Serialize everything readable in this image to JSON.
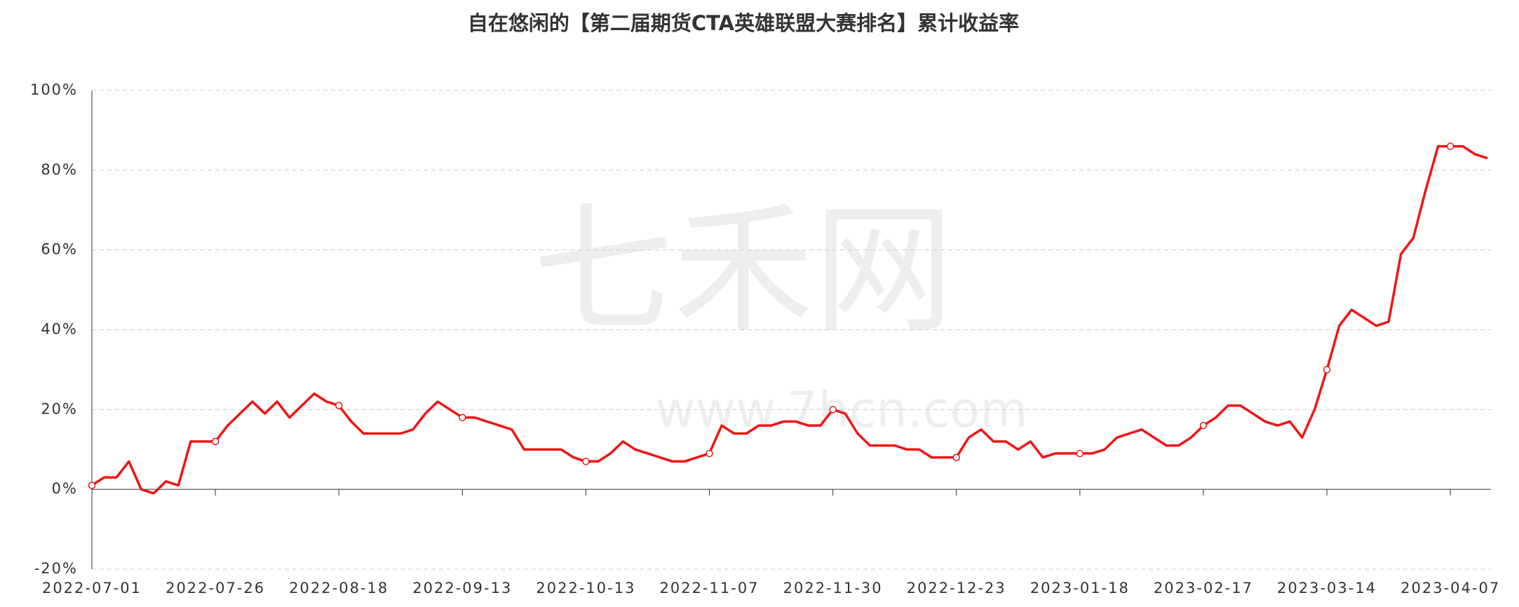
{
  "chart_data": {
    "type": "line",
    "title": "自在悠闲的【第二届期货CTA英雄联盟大赛排名】累计收益率",
    "watermark": [
      "七禾网",
      "www.7hcn.com"
    ],
    "categories": [
      "2022-07-01",
      null,
      null,
      null,
      null,
      null,
      null,
      null,
      null,
      null,
      "2022-07-26",
      null,
      null,
      null,
      null,
      null,
      null,
      null,
      null,
      null,
      "2022-08-18",
      null,
      null,
      null,
      null,
      null,
      null,
      null,
      null,
      null,
      "2022-09-13",
      null,
      null,
      null,
      null,
      null,
      null,
      null,
      null,
      null,
      "2022-10-13",
      null,
      null,
      null,
      null,
      null,
      null,
      null,
      null,
      null,
      "2022-11-07",
      null,
      null,
      null,
      null,
      null,
      null,
      null,
      null,
      null,
      "2022-11-30",
      null,
      null,
      null,
      null,
      null,
      null,
      null,
      null,
      null,
      "2022-12-23",
      null,
      null,
      null,
      null,
      null,
      null,
      null,
      null,
      null,
      "2023-01-18",
      null,
      null,
      null,
      null,
      null,
      null,
      null,
      null,
      null,
      "2023-02-17",
      null,
      null,
      null,
      null,
      null,
      null,
      null,
      null,
      null,
      "2023-03-14",
      null,
      null,
      null,
      null,
      null,
      null,
      null,
      null,
      null,
      "2023-04-07",
      null,
      null,
      null
    ],
    "series": [
      {
        "name": "累计收益率",
        "color": "#f01414",
        "values": [
          1,
          3,
          3,
          7,
          0,
          -1,
          2,
          1,
          12,
          12,
          12,
          16,
          19,
          22,
          19,
          22,
          18,
          21,
          24,
          22,
          21,
          17,
          14,
          14,
          14,
          14,
          15,
          19,
          22,
          20,
          18,
          18,
          17,
          16,
          15,
          10,
          10,
          10,
          10,
          8,
          7,
          7,
          9,
          12,
          10,
          9,
          8,
          7,
          7,
          8,
          9,
          16,
          14,
          14,
          16,
          16,
          17,
          17,
          16,
          16,
          20,
          19,
          14,
          11,
          11,
          11,
          10,
          10,
          8,
          8,
          8,
          13,
          15,
          12,
          12,
          10,
          12,
          8,
          9,
          9,
          9,
          9,
          10,
          13,
          14,
          15,
          13,
          11,
          11,
          13,
          16,
          18,
          21,
          21,
          19,
          17,
          16,
          17,
          13,
          20,
          30,
          41,
          45,
          43,
          41,
          42,
          59,
          63,
          75,
          86,
          86,
          86,
          84,
          83
        ]
      }
    ],
    "ylim": [
      -20,
      100
    ],
    "yticks": [
      {
        "value": -20,
        "label": "-20%"
      },
      {
        "value": 0,
        "label": "0%"
      },
      {
        "value": 20,
        "label": "20%"
      },
      {
        "value": 40,
        "label": "40%"
      },
      {
        "value": 60,
        "label": "60%"
      },
      {
        "value": 80,
        "label": "80%"
      },
      {
        "value": 100,
        "label": "100%"
      }
    ],
    "grid": true
  }
}
